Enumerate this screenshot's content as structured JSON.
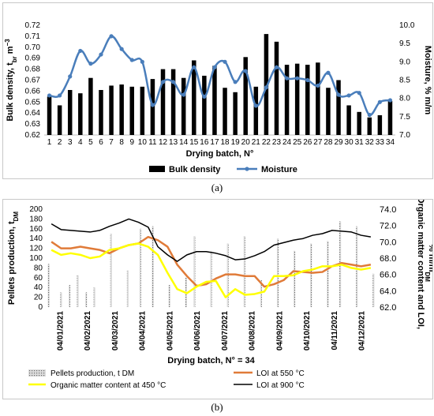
{
  "panels": {
    "a": {
      "caption": "(a)"
    },
    "b": {
      "caption": "(b)"
    }
  },
  "chart_data": [
    {
      "type": "bar",
      "title": "",
      "xlabel": "Drying batch, N°",
      "ylabel": "Bulk density, t",
      "ylabel_sub": "br",
      "ylabel_unit": " m",
      "ylabel_sup": "−3",
      "y2label": "Moisture, % m/m",
      "ylim": [
        0.62,
        0.72
      ],
      "yticks": [
        "0.62",
        "0.63",
        "0.64",
        "0.65",
        "0.66",
        "0.67",
        "0.68",
        "0.69",
        "0.70",
        "0.71",
        "0.72"
      ],
      "y2lim": [
        7.0,
        10.0
      ],
      "y2ticks": [
        "7.0",
        "7.5",
        "8.0",
        "8.5",
        "9.0",
        "9.5",
        "10.0"
      ],
      "categories": [
        "1",
        "2",
        "3",
        "4",
        "5",
        "6",
        "7",
        "8",
        "9",
        "10",
        "11",
        "12",
        "13",
        "14",
        "15",
        "16",
        "17",
        "18",
        "19",
        "20",
        "21",
        "22",
        "23",
        "24",
        "25",
        "26",
        "27",
        "28",
        "29",
        "30",
        "31",
        "32",
        "33",
        "34"
      ],
      "series": [
        {
          "name": "Bulk density",
          "kind": "bar",
          "color": "#000000",
          "values": [
            0.655,
            0.647,
            0.661,
            0.658,
            0.672,
            0.661,
            0.665,
            0.666,
            0.664,
            0.664,
            0.671,
            0.68,
            0.68,
            0.672,
            0.688,
            0.674,
            0.683,
            0.663,
            0.659,
            0.691,
            0.664,
            0.712,
            0.705,
            0.684,
            0.685,
            0.684,
            0.686,
            0.663,
            0.67,
            0.647,
            0.641,
            0.636,
            0.638,
            0.651
          ]
        },
        {
          "name": "Moisture",
          "kind": "line",
          "axis": "right",
          "color": "#4a7ebb",
          "values": [
            8.08,
            8.08,
            8.6,
            9.3,
            8.95,
            9.2,
            9.7,
            9.35,
            9.05,
            9.0,
            7.82,
            8.45,
            8.45,
            8.1,
            8.85,
            8.05,
            8.85,
            9.0,
            8.45,
            8.75,
            7.8,
            8.3,
            8.85,
            8.55,
            8.55,
            8.5,
            8.35,
            8.7,
            8.1,
            8.08,
            8.15,
            7.55,
            7.9,
            7.95
          ]
        }
      ],
      "legend": "bottom",
      "grid": false
    },
    {
      "type": "bar",
      "title": "",
      "xlabel": "Drying batch, N° = 34",
      "ylabel": "Pellets production, t",
      "ylabel_sub": "DM",
      "y2label": "Organic matter content and LOI,",
      "y2label_line2": "% m/m",
      "y2label_sub": "DM",
      "ylim": [
        0,
        200
      ],
      "yticks": [
        "0",
        "20",
        "40",
        "60",
        "80",
        "100",
        "120",
        "140",
        "160",
        "180",
        "200"
      ],
      "y2lim": [
        62.0,
        74.0
      ],
      "y2ticks": [
        "62.0",
        "64.0",
        "66.0",
        "68.0",
        "70.0",
        "72.0",
        "74.0"
      ],
      "xticks": [
        "04/01/2021",
        "04/02/2021",
        "04/03/2021",
        "04/04/2021",
        "04/05/2021",
        "04/06/2021",
        "04/07/2021",
        "04/08/2021",
        "04/09/2021",
        "04/10/2021",
        "04/11/2021",
        "04/12/2021"
      ],
      "series": [
        {
          "name": "Pellets production, t DM",
          "kind": "bar",
          "color": "#9a9a9a",
          "values": [
            88,
            0,
            0,
            30,
            0,
            45,
            0,
            65,
            0,
            30,
            0,
            40,
            0,
            0,
            0,
            150,
            0,
            0,
            0,
            75,
            0,
            0,
            160,
            0,
            0,
            165,
            0,
            0,
            0,
            45,
            0,
            0,
            0,
            60,
            0,
            145,
            0,
            0,
            0,
            115,
            0,
            0,
            0,
            130,
            0,
            0,
            0,
            145,
            0,
            0,
            0,
            55,
            0,
            0,
            0,
            140,
            0,
            0,
            0,
            115,
            0,
            0,
            0,
            130,
            0,
            0,
            0,
            135,
            0,
            0,
            175,
            0,
            0,
            0,
            165,
            0,
            0,
            0,
            68
          ]
        },
        {
          "name": "LOI at 550 °C",
          "kind": "line",
          "axis": "right",
          "color": "#e07b39",
          "values": [
            70.0,
            69.2,
            69.2,
            69.4,
            69.2,
            69.0,
            68.6,
            69.2,
            69.6,
            69.8,
            70.6,
            70.2,
            69.4,
            67.2,
            65.8,
            64.6,
            64.8,
            65.5,
            66.0,
            66.0,
            65.8,
            65.8,
            64.5,
            64.8,
            65.3,
            66.4,
            66.3,
            66.2,
            66.3,
            67.0,
            67.4,
            67.2,
            67.0,
            67.2
          ]
        },
        {
          "name": "Organic matter content at 450 °C",
          "kind": "line",
          "axis": "right",
          "color": "#ffff00",
          "values": [
            69.0,
            68.4,
            68.6,
            68.4,
            68.0,
            68.2,
            69.0,
            69.2,
            69.6,
            69.8,
            69.4,
            68.4,
            66.2,
            64.2,
            63.7,
            64.5,
            65.1,
            65.2,
            63.2,
            64.2,
            63.5,
            63.6,
            63.9,
            65.8,
            65.8,
            65.9,
            66.4,
            66.6,
            67.0,
            67.0,
            67.2,
            66.8,
            66.6,
            66.8
          ]
        },
        {
          "name": "LOI at 900 °C",
          "kind": "line",
          "axis": "right",
          "color": "#000000",
          "values": [
            72.2,
            71.5,
            71.4,
            71.3,
            71.2,
            71.4,
            71.9,
            72.3,
            72.8,
            72.4,
            71.8,
            69.4,
            68.4,
            67.6,
            68.4,
            68.8,
            68.8,
            68.6,
            68.3,
            67.8,
            67.9,
            68.3,
            68.8,
            69.6,
            69.9,
            70.2,
            70.4,
            70.8,
            71.0,
            71.4,
            71.3,
            71.2,
            70.8,
            70.6
          ]
        }
      ],
      "legend": "bottom",
      "grid": false
    }
  ]
}
